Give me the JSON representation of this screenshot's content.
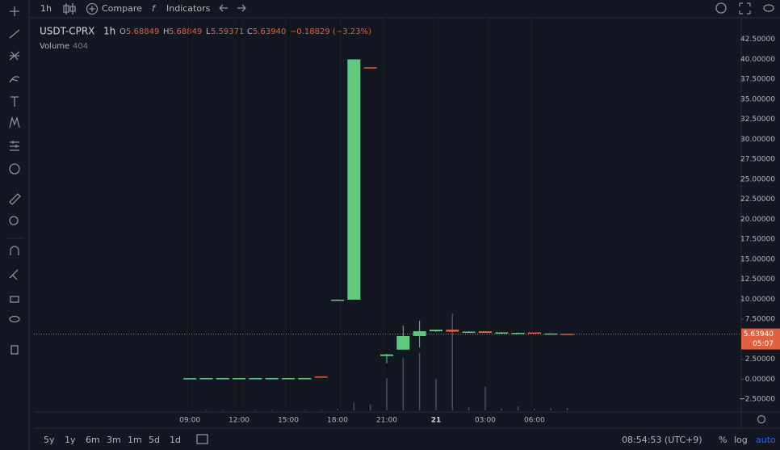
{
  "toolbar": {
    "interval": "1h",
    "compare": "Compare",
    "indicators": "Indicators"
  },
  "legend": {
    "symbol": "USDT-CPRX",
    "interval": "1h",
    "open_label": "O",
    "open": "5.68849",
    "high_label": "H",
    "high": "5.68849",
    "low_label": "L",
    "low": "5.59371",
    "close_label": "C",
    "close": "5.63940",
    "change": "−0.18829 (−3.23%)",
    "volume_label": "Volume",
    "volume": "404"
  },
  "chart_data": {
    "type": "candlestick",
    "x": [
      9,
      10,
      11,
      12,
      13,
      14,
      15,
      16,
      17,
      18,
      19,
      20,
      21,
      22,
      23,
      24,
      25,
      26,
      27,
      28,
      29,
      30,
      31,
      32
    ],
    "open": [
      0.12,
      0.13,
      0.14,
      0.14,
      0.14,
      0.14,
      0.14,
      0.14,
      0.35,
      9.9,
      9.95,
      39.0,
      2.9,
      3.7,
      5.4,
      6.0,
      6.2,
      5.8,
      6.0,
      5.8,
      5.8,
      5.85,
      5.72,
      5.68849
    ],
    "high": [
      0.15,
      0.15,
      0.16,
      0.16,
      0.16,
      0.16,
      0.16,
      0.16,
      0.35,
      10.0,
      40.0,
      39.0,
      3.2,
      6.7,
      7.3,
      6.2,
      6.2,
      6.0,
      6.0,
      5.9,
      5.85,
      5.85,
      5.75,
      5.68849
    ],
    "low": [
      0.1,
      0.1,
      0.12,
      0.12,
      0.12,
      0.12,
      0.12,
      0.12,
      0.15,
      9.9,
      9.95,
      38.9,
      2.0,
      3.7,
      4.0,
      5.9,
      5.9,
      5.8,
      5.8,
      5.8,
      5.75,
      5.7,
      5.7,
      5.59371
    ],
    "close": [
      0.13,
      0.14,
      0.14,
      0.14,
      0.14,
      0.14,
      0.14,
      0.14,
      0.3,
      9.95,
      40.0,
      38.95,
      3.1,
      5.4,
      6.0,
      6.2,
      5.95,
      5.95,
      5.8,
      5.85,
      5.8,
      5.7,
      5.72,
      5.6394
    ],
    "volume": [
      100,
      100,
      100,
      100,
      100,
      100,
      100,
      100,
      100,
      300,
      1300,
      1000,
      5400,
      8800,
      9600,
      5300,
      16200,
      500,
      4000,
      300,
      700,
      300,
      400,
      404
    ],
    "up_color": "#5fc97e",
    "down_color": "#e0603f",
    "volume_color": "#4a4e5a",
    "xlim": [
      -0.5,
      42.6
    ],
    "ylim": [
      -4.1,
      45.2
    ],
    "xticks": [
      {
        "value": 9,
        "label": "09:00"
      },
      {
        "value": 12,
        "label": "12:00"
      },
      {
        "value": 15,
        "label": "15:00"
      },
      {
        "value": 18,
        "label": "18:00"
      },
      {
        "value": 21,
        "label": "21:00"
      },
      {
        "value": 24,
        "label": "21"
      },
      {
        "value": 27,
        "label": "03:00"
      },
      {
        "value": 30,
        "label": "06:00"
      }
    ],
    "yticks": [
      {
        "value": -2.5,
        "label": "−2.50000"
      },
      {
        "value": 0,
        "label": "0.00000"
      },
      {
        "value": 2.5,
        "label": "2.50000"
      },
      {
        "value": 5,
        "label": "5.00000"
      },
      {
        "value": 7.5,
        "label": "7.50000"
      },
      {
        "value": 10,
        "label": "10.00000"
      },
      {
        "value": 12.5,
        "label": "12.50000"
      },
      {
        "value": 15,
        "label": "15.00000"
      },
      {
        "value": 17.5,
        "label": "17.50000"
      },
      {
        "value": 20,
        "label": "20.00000"
      },
      {
        "value": 22.5,
        "label": "22.50000"
      },
      {
        "value": 25,
        "label": "25.00000"
      },
      {
        "value": 27.5,
        "label": "27.50000"
      },
      {
        "value": 30,
        "label": "30.00000"
      },
      {
        "value": 32.5,
        "label": "32.50000"
      },
      {
        "value": 35,
        "label": "35.00000"
      },
      {
        "value": 37.5,
        "label": "37.50000"
      },
      {
        "value": 40,
        "label": "40.00000"
      },
      {
        "value": 42.5,
        "label": "42.50000"
      }
    ],
    "grid": true,
    "last_price": {
      "value": 5.6394,
      "label": "5.63940"
    },
    "countdown": "05:07"
  },
  "bottom_bar": {
    "ranges": [
      "5y",
      "1y",
      "6m",
      "3m",
      "1m",
      "5d",
      "1d"
    ],
    "clock": "08:54:53 (UTC+9)",
    "percent": "%",
    "log": "log",
    "auto": "auto"
  }
}
